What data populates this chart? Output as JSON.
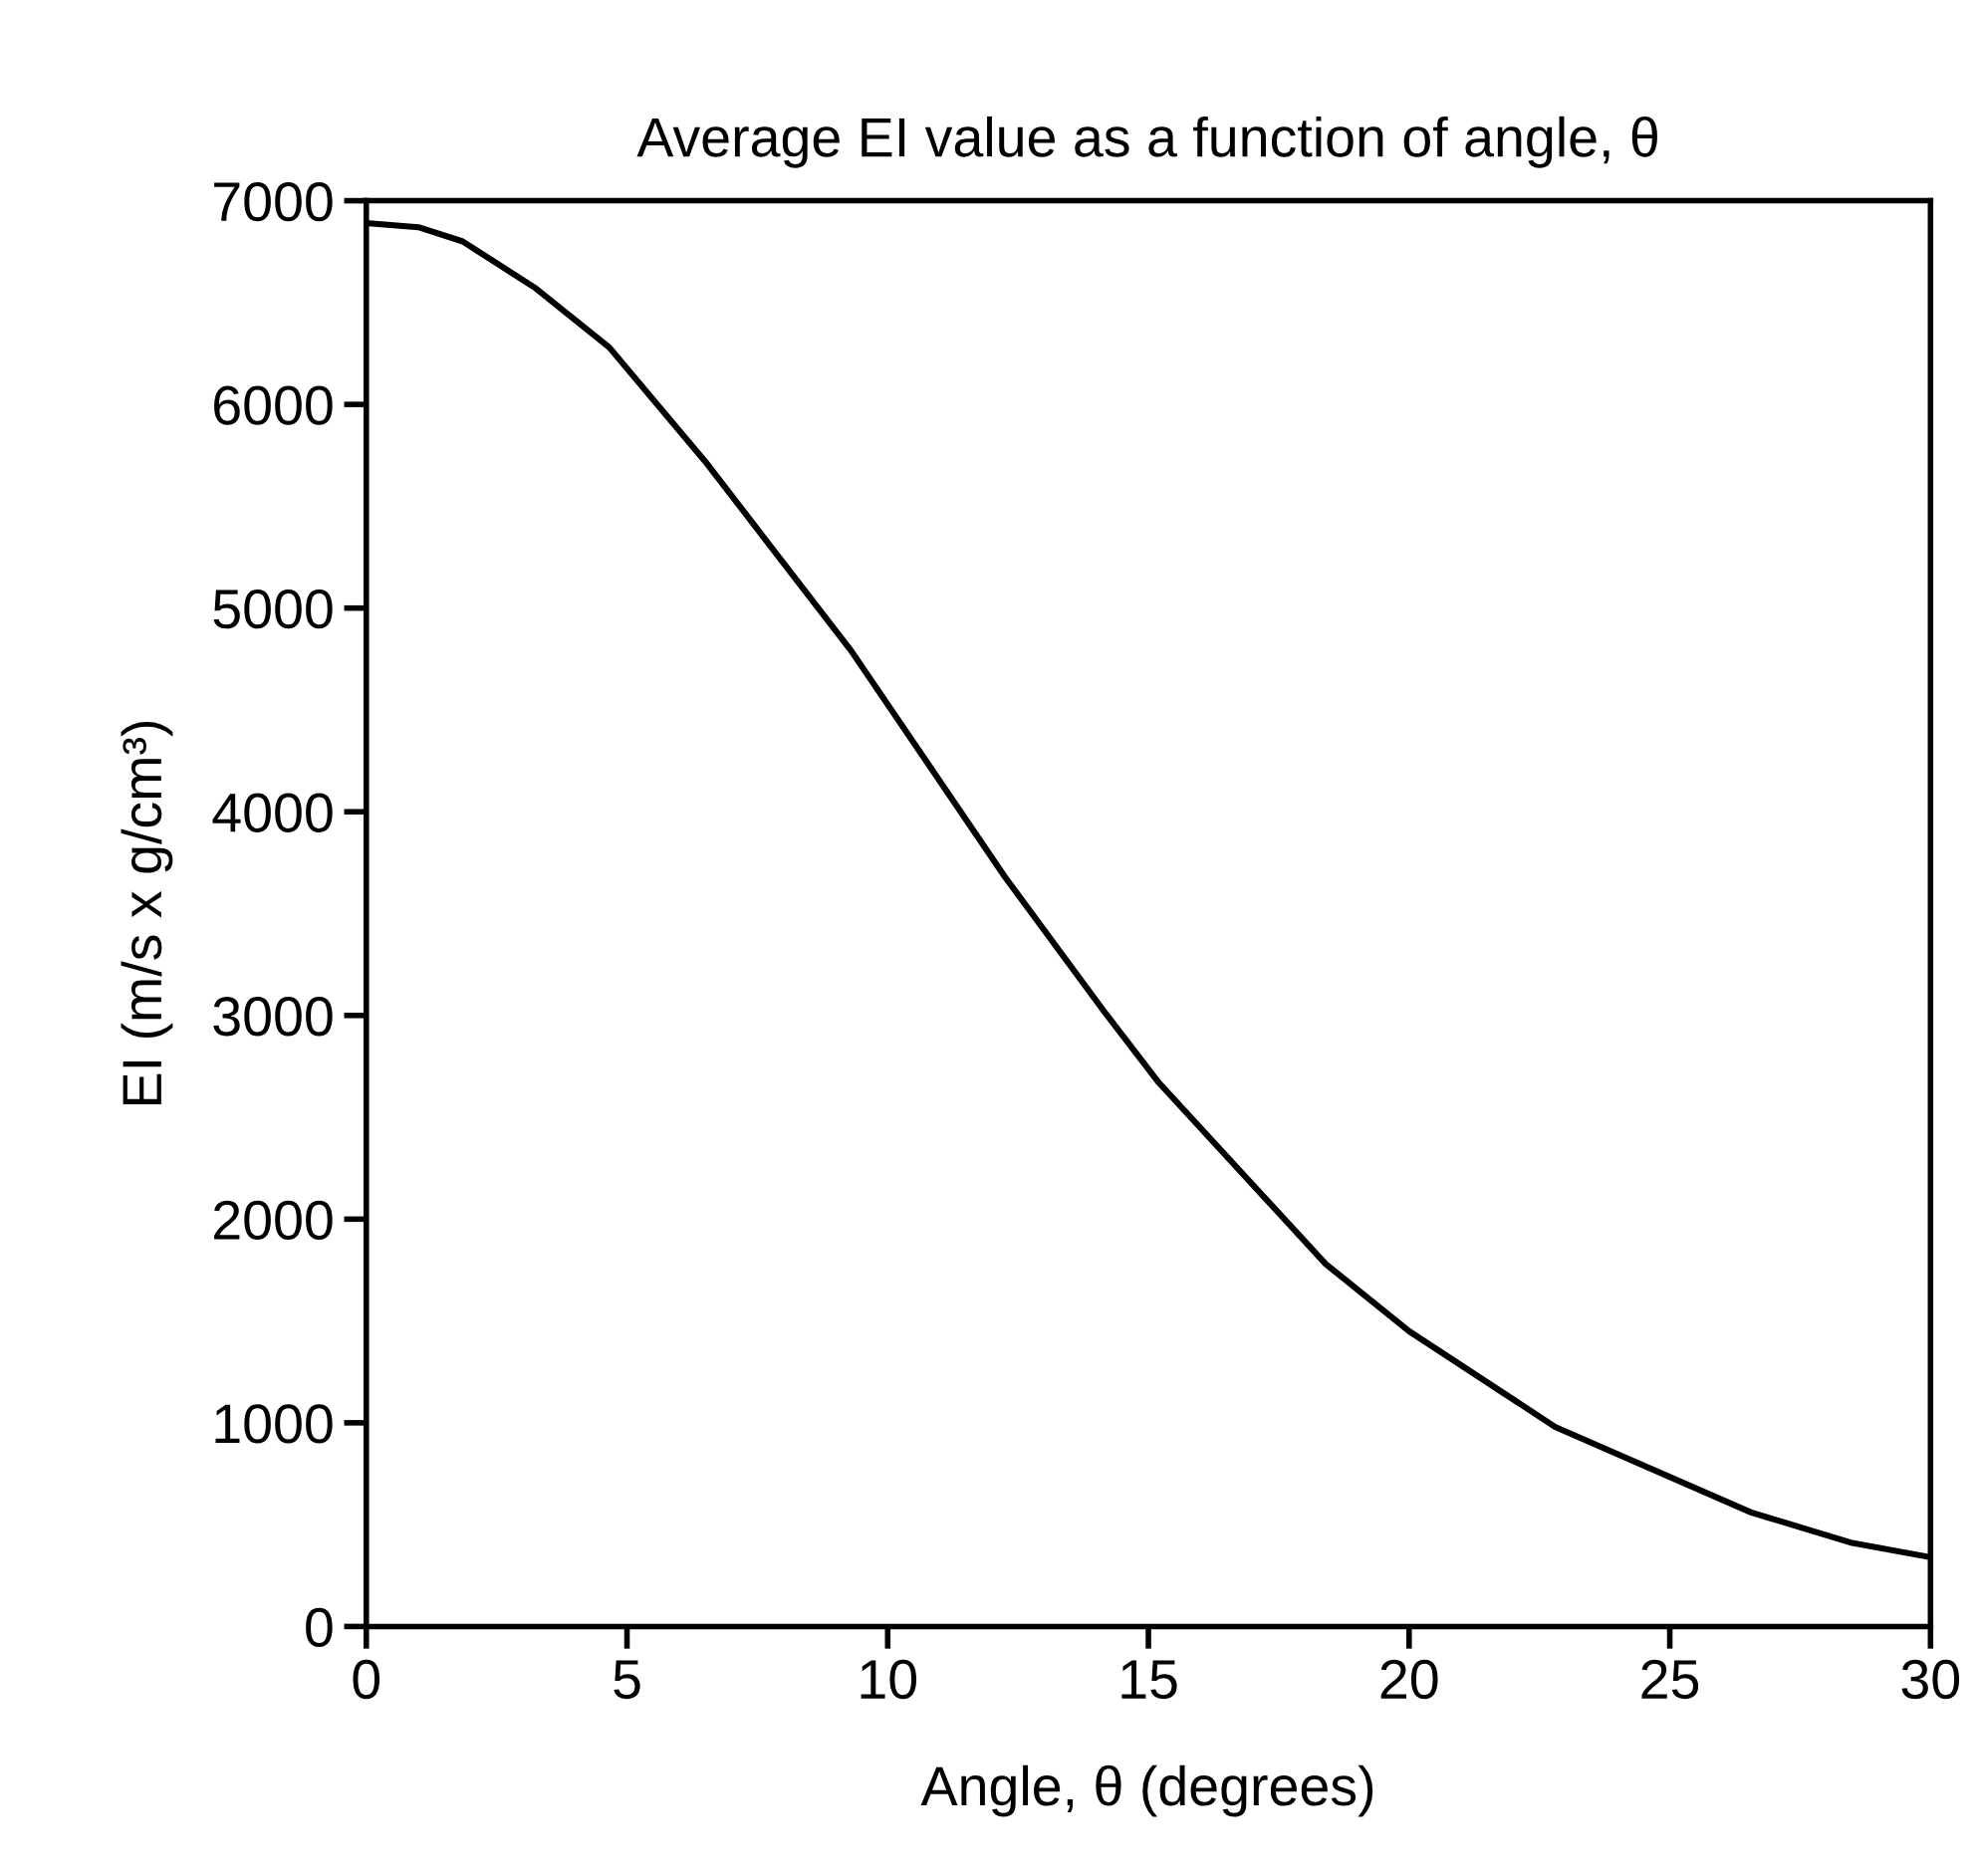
{
  "chart_data": {
    "type": "line",
    "title": "Average EI value as a function of angle, θ",
    "xlabel": "Angle, θ (degrees)",
    "ylabel": "EI (m/s x g/cm³)",
    "x": [
      0,
      1.0,
      1.85,
      3.25,
      4.66,
      6.5,
      9.3,
      12.25,
      14.15,
      15.2,
      18.4,
      20.0,
      22.8,
      26.56,
      28.5,
      30
    ],
    "series": [
      {
        "color": "#000000",
        "values": [
          6890,
          6870,
          6800,
          6570,
          6280,
          5720,
          4790,
          3680,
          3020,
          2670,
          1780,
          1450,
          980,
          560,
          410,
          340
        ]
      }
    ],
    "xlim": [
      0,
      30
    ],
    "ylim": [
      0,
      7000
    ],
    "xticks": [
      0,
      5,
      10,
      15,
      20,
      25,
      30
    ],
    "yticks": [
      0,
      1000,
      2000,
      3000,
      4000,
      5000,
      6000,
      7000
    ],
    "grid": false,
    "legend": false,
    "marker": "none",
    "line_style": "solid"
  }
}
